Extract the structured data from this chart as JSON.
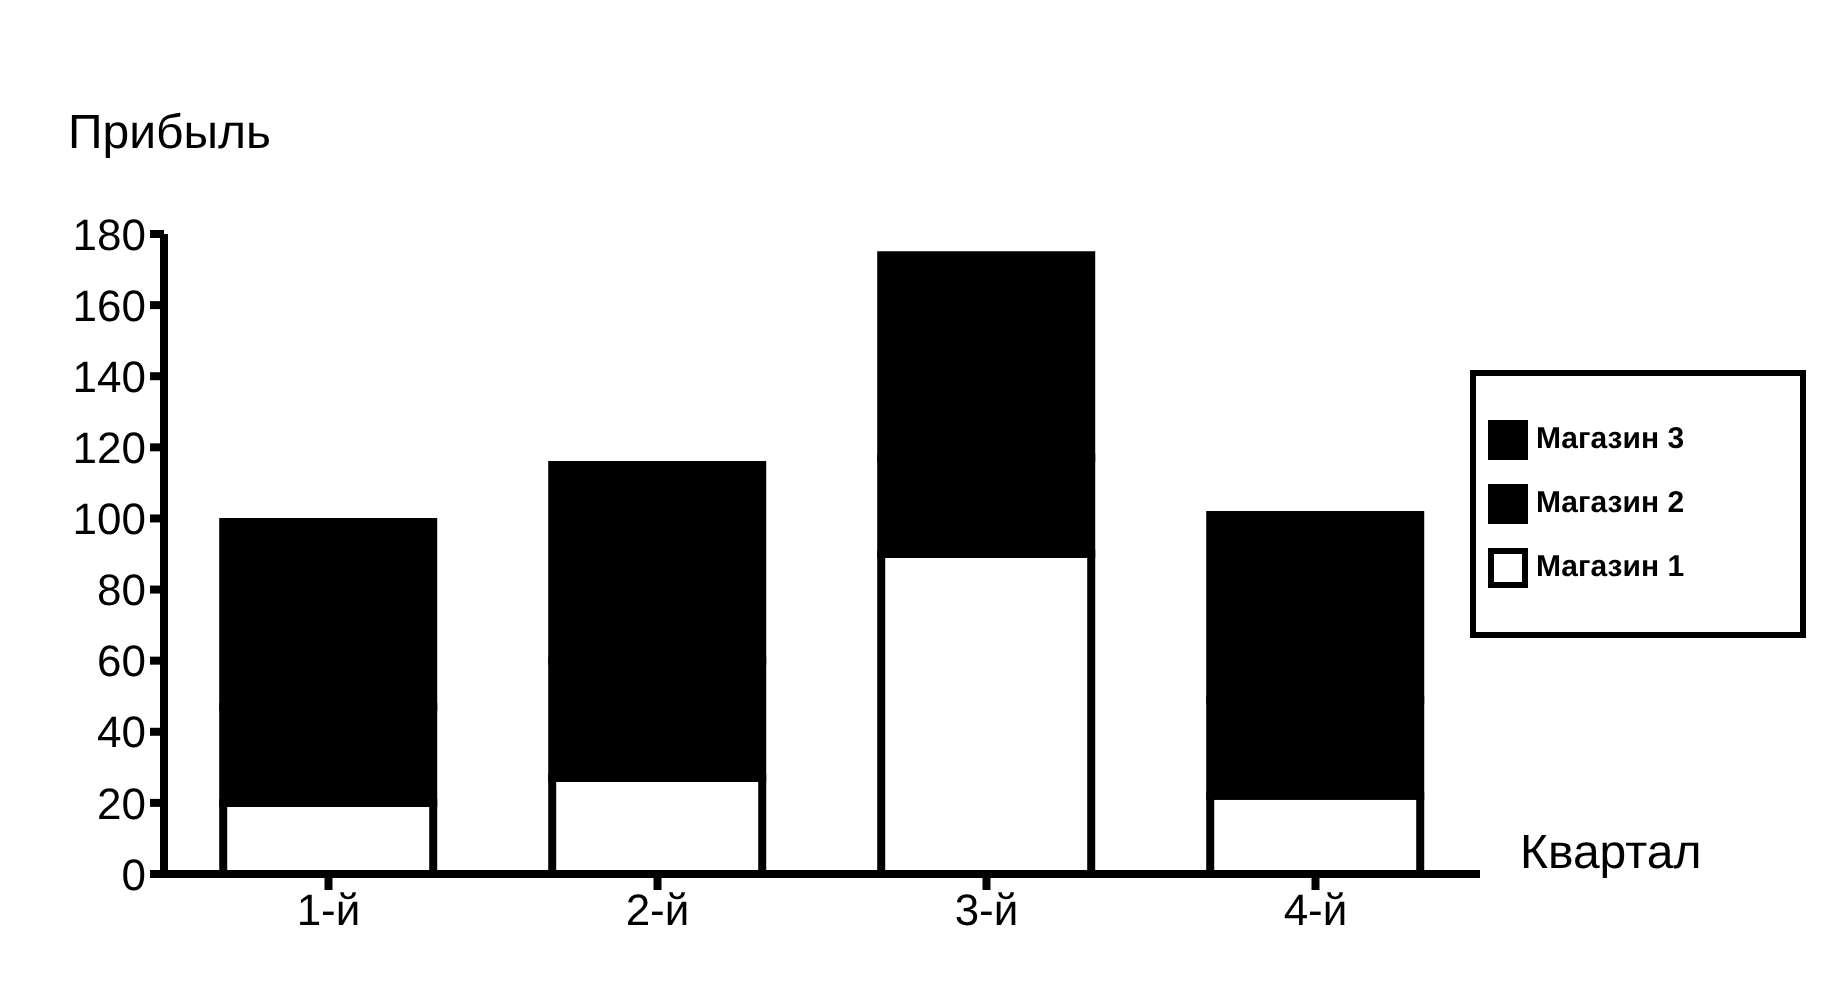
{
  "chart_data": {
    "type": "bar",
    "stacked": true,
    "xlabel": "Квартал",
    "ylabel": "Прибыль",
    "categories": [
      "1-й",
      "2-й",
      "3-й",
      "4-й"
    ],
    "series": [
      {
        "name": "Магазин 1",
        "color": "#ffffff",
        "values": [
          20,
          27,
          90,
          22
        ]
      },
      {
        "name": "Магазин 2",
        "color": "#000000",
        "values": [
          27,
          33,
          27,
          27
        ]
      },
      {
        "name": "Магазин 3",
        "color": "#000000",
        "values": [
          52,
          55,
          57,
          52
        ]
      }
    ],
    "ylim": [
      0,
      180
    ],
    "yticks": [
      0,
      20,
      40,
      60,
      80,
      100,
      120,
      140,
      160,
      180
    ],
    "grid": false,
    "legend": "right"
  }
}
